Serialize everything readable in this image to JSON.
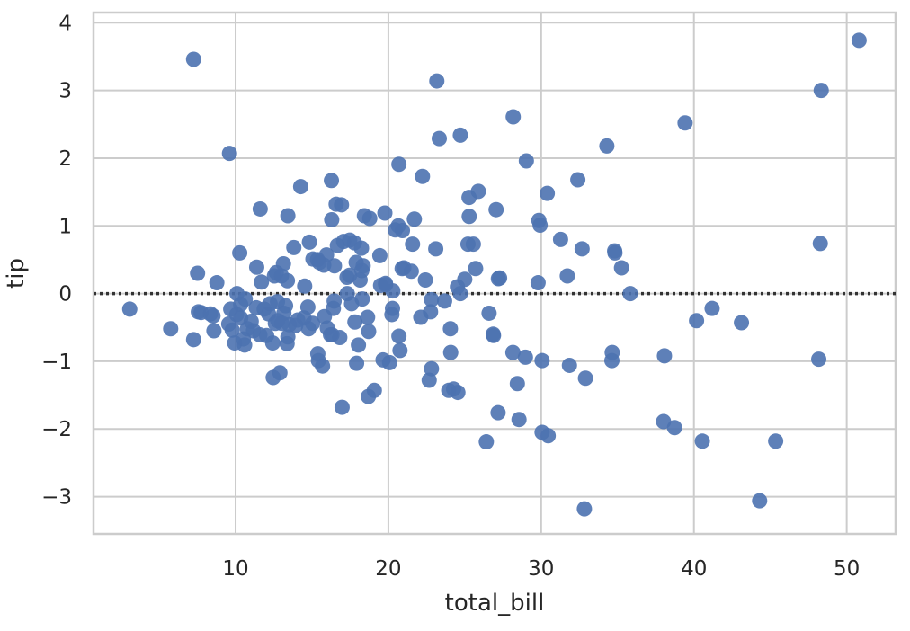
{
  "chart_data": {
    "type": "scatter",
    "title": "",
    "xlabel": "total_bill",
    "ylabel": "tip",
    "xlim": [
      0.7,
      53.2
    ],
    "ylim": [
      -3.55,
      4.15
    ],
    "xticks": [
      10,
      20,
      30,
      40,
      50
    ],
    "yticks": [
      -3,
      -2,
      -1,
      0,
      1,
      2,
      3,
      4
    ],
    "xtick_labels": [
      "10",
      "20",
      "30",
      "40",
      "50"
    ],
    "ytick_labels": [
      "−3",
      "−2",
      "−1",
      "0",
      "1",
      "2",
      "3",
      "4"
    ],
    "grid": true,
    "reference_line": {
      "y": 0,
      "style": "dotted",
      "color": "#333333"
    },
    "point_color": "#4c72b0",
    "points": [
      [
        3.07,
        -0.23
      ],
      [
        5.75,
        -0.52
      ],
      [
        7.25,
        -0.68
      ],
      [
        7.51,
        0.3
      ],
      [
        7.56,
        -0.27
      ],
      [
        7.74,
        -0.28
      ],
      [
        8.35,
        -0.3
      ],
      [
        8.52,
        -0.33
      ],
      [
        8.58,
        -0.55
      ],
      [
        8.77,
        0.16
      ],
      [
        9.55,
        -0.45
      ],
      [
        9.68,
        -0.23
      ],
      [
        9.78,
        -0.54
      ],
      [
        9.94,
        -0.73
      ],
      [
        10.07,
        -0.31
      ],
      [
        10.09,
        0.0
      ],
      [
        10.27,
        0.6
      ],
      [
        10.33,
        -0.16
      ],
      [
        10.34,
        -0.36
      ],
      [
        10.51,
        -0.67
      ],
      [
        10.59,
        -0.76
      ],
      [
        10.63,
        -0.08
      ],
      [
        10.77,
        -0.52
      ],
      [
        11.02,
        -0.41
      ],
      [
        11.17,
        -0.55
      ],
      [
        11.35,
        -0.21
      ],
      [
        11.38,
        0.39
      ],
      [
        11.59,
        -0.61
      ],
      [
        11.61,
        1.25
      ],
      [
        11.69,
        0.17
      ],
      [
        11.87,
        -0.23
      ],
      [
        12.03,
        -0.62
      ],
      [
        12.16,
        -0.3
      ],
      [
        12.26,
        -0.15
      ],
      [
        12.43,
        -0.73
      ],
      [
        12.46,
        -1.24
      ],
      [
        12.54,
        0.26
      ],
      [
        12.6,
        -0.44
      ],
      [
        12.66,
        0.31
      ],
      [
        12.74,
        -0.12
      ],
      [
        12.76,
        -0.4
      ],
      [
        12.9,
        -1.17
      ],
      [
        13.0,
        0.26
      ],
      [
        13.03,
        -0.44
      ],
      [
        13.13,
        0.44
      ],
      [
        13.16,
        -0.29
      ],
      [
        13.27,
        -0.18
      ],
      [
        13.37,
        -0.74
      ],
      [
        13.39,
        0.19
      ],
      [
        13.42,
        -0.64
      ],
      [
        13.42,
        1.15
      ],
      [
        13.51,
        -0.46
      ],
      [
        13.81,
        0.68
      ],
      [
        13.94,
        -0.47
      ],
      [
        14.07,
        -0.39
      ],
      [
        14.26,
        1.58
      ],
      [
        14.48,
        -0.36
      ],
      [
        14.52,
        0.11
      ],
      [
        14.73,
        -0.2
      ],
      [
        14.78,
        -0.52
      ],
      [
        14.83,
        0.76
      ],
      [
        15.04,
        -0.44
      ],
      [
        15.06,
        0.51
      ],
      [
        15.36,
        0.5
      ],
      [
        15.38,
        -0.89
      ],
      [
        15.42,
        -0.99
      ],
      [
        15.48,
        0.46
      ],
      [
        15.69,
        -1.07
      ],
      [
        15.77,
        0.42
      ],
      [
        15.81,
        -0.34
      ],
      [
        15.95,
        0.57
      ],
      [
        16.0,
        -0.51
      ],
      [
        16.21,
        -0.61
      ],
      [
        16.27,
        1.67
      ],
      [
        16.29,
        1.09
      ],
      [
        16.31,
        -0.61
      ],
      [
        16.4,
        -0.22
      ],
      [
        16.45,
        -0.11
      ],
      [
        16.47,
        0.41
      ],
      [
        16.58,
        1.32
      ],
      [
        16.66,
        0.71
      ],
      [
        16.82,
        -0.65
      ],
      [
        16.93,
        1.31
      ],
      [
        16.97,
        -1.68
      ],
      [
        17.07,
        0.77
      ],
      [
        17.29,
        0.24
      ],
      [
        17.31,
        0.0
      ],
      [
        17.46,
        0.27
      ],
      [
        17.47,
        0.79
      ],
      [
        17.59,
        -0.15
      ],
      [
        17.78,
        0.75
      ],
      [
        17.81,
        -0.42
      ],
      [
        17.89,
        0.46
      ],
      [
        17.92,
        -1.03
      ],
      [
        18.04,
        -0.76
      ],
      [
        18.15,
        0.2
      ],
      [
        18.24,
        0.67
      ],
      [
        18.26,
        0.34
      ],
      [
        18.29,
        -0.08
      ],
      [
        18.35,
        0.41
      ],
      [
        18.43,
        1.15
      ],
      [
        18.64,
        -0.35
      ],
      [
        18.69,
        -1.52
      ],
      [
        18.71,
        -0.56
      ],
      [
        18.78,
        1.11
      ],
      [
        19.08,
        -1.43
      ],
      [
        19.44,
        0.56
      ],
      [
        19.49,
        0.12
      ],
      [
        19.65,
        -0.98
      ],
      [
        19.77,
        1.19
      ],
      [
        19.81,
        0.15
      ],
      [
        19.82,
        0.13
      ],
      [
        20.08,
        -1.02
      ],
      [
        20.23,
        -0.31
      ],
      [
        20.27,
        -0.22
      ],
      [
        20.29,
        0.04
      ],
      [
        20.45,
        0.94
      ],
      [
        20.65,
        1.0
      ],
      [
        20.69,
        -0.63
      ],
      [
        20.69,
        1.91
      ],
      [
        20.76,
        -0.84
      ],
      [
        20.9,
        0.37
      ],
      [
        20.92,
        0.93
      ],
      [
        21.01,
        0.38
      ],
      [
        21.5,
        0.33
      ],
      [
        21.58,
        0.73
      ],
      [
        21.7,
        1.1
      ],
      [
        22.12,
        -0.35
      ],
      [
        22.23,
        1.73
      ],
      [
        22.42,
        0.2
      ],
      [
        22.67,
        -1.28
      ],
      [
        22.76,
        -0.27
      ],
      [
        22.82,
        -0.09
      ],
      [
        22.82,
        -1.11
      ],
      [
        23.1,
        0.66
      ],
      [
        23.17,
        3.14
      ],
      [
        23.33,
        2.29
      ],
      [
        23.68,
        -0.11
      ],
      [
        23.95,
        -1.43
      ],
      [
        24.06,
        -0.52
      ],
      [
        24.08,
        -0.87
      ],
      [
        24.27,
        -1.41
      ],
      [
        24.52,
        0.1
      ],
      [
        24.55,
        -1.46
      ],
      [
        24.71,
        2.34
      ],
      [
        24.71,
        0.0
      ],
      [
        25.0,
        0.21
      ],
      [
        25.21,
        0.73
      ],
      [
        25.28,
        1.42
      ],
      [
        25.29,
        1.14
      ],
      [
        25.56,
        0.73
      ],
      [
        25.71,
        0.37
      ],
      [
        25.89,
        1.51
      ],
      [
        26.41,
        -2.19
      ],
      [
        26.59,
        -0.29
      ],
      [
        26.86,
        -0.6
      ],
      [
        26.88,
        -0.62
      ],
      [
        27.05,
        1.24
      ],
      [
        27.18,
        -1.76
      ],
      [
        27.2,
        0.22
      ],
      [
        27.28,
        0.23
      ],
      [
        28.15,
        -0.87
      ],
      [
        28.17,
        2.61
      ],
      [
        28.44,
        -1.33
      ],
      [
        28.55,
        -1.86
      ],
      [
        28.97,
        -0.94
      ],
      [
        29.03,
        1.96
      ],
      [
        29.8,
        0.16
      ],
      [
        29.85,
        1.08
      ],
      [
        29.93,
        1.01
      ],
      [
        30.06,
        -2.05
      ],
      [
        30.06,
        -0.99
      ],
      [
        30.4,
        1.48
      ],
      [
        30.46,
        -2.1
      ],
      [
        31.27,
        0.8
      ],
      [
        31.71,
        0.26
      ],
      [
        31.85,
        -1.06
      ],
      [
        32.4,
        1.68
      ],
      [
        32.68,
        0.66
      ],
      [
        32.83,
        -3.18
      ],
      [
        32.9,
        -1.25
      ],
      [
        34.3,
        2.18
      ],
      [
        34.63,
        -0.99
      ],
      [
        34.65,
        -0.87
      ],
      [
        34.81,
        0.63
      ],
      [
        34.83,
        0.6
      ],
      [
        35.26,
        0.38
      ],
      [
        35.83,
        0.0
      ],
      [
        38.01,
        -1.89
      ],
      [
        38.07,
        -0.92
      ],
      [
        38.73,
        -1.98
      ],
      [
        39.42,
        2.52
      ],
      [
        40.17,
        -0.4
      ],
      [
        40.55,
        -2.18
      ],
      [
        41.19,
        -0.22
      ],
      [
        43.11,
        -0.43
      ],
      [
        44.3,
        -3.06
      ],
      [
        45.35,
        -2.18
      ],
      [
        48.17,
        -0.97
      ],
      [
        48.27,
        0.74
      ],
      [
        48.33,
        3.0
      ],
      [
        50.81,
        3.74
      ],
      [
        7.25,
        3.46
      ],
      [
        9.6,
        2.07
      ]
    ]
  }
}
